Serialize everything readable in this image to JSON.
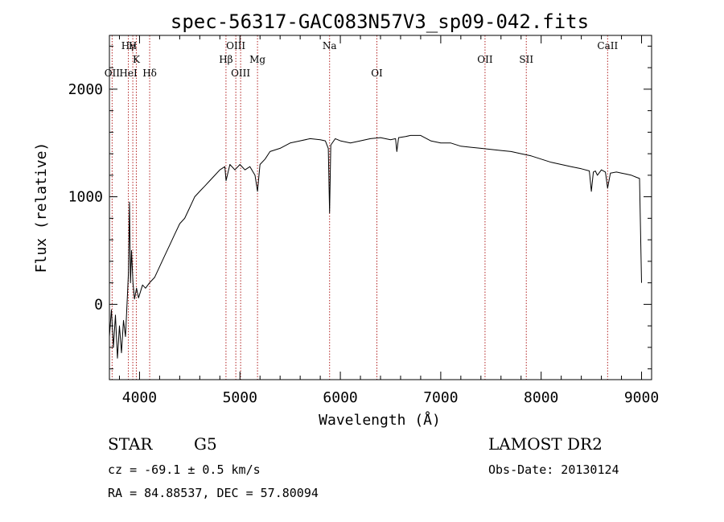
{
  "chart_data": {
    "type": "line",
    "title": "spec-56317-GAC083N57V3_sp09-042.fits",
    "xlabel": "Wavelength (Å)",
    "ylabel": "Flux (relative)",
    "xlim": [
      3700,
      9100
    ],
    "ylim": [
      -700,
      2500
    ],
    "xticks": [
      4000,
      5000,
      6000,
      7000,
      8000,
      9000
    ],
    "yticks": [
      0,
      1000,
      2000
    ],
    "grid": false,
    "line_color": "#000000",
    "marker_line_color": "#b22222",
    "spectrum": {
      "x": [
        3700,
        3720,
        3740,
        3760,
        3780,
        3800,
        3820,
        3840,
        3860,
        3880,
        3890,
        3900,
        3910,
        3920,
        3935,
        3950,
        3970,
        3990,
        4010,
        4030,
        4060,
        4100,
        4150,
        4200,
        4250,
        4300,
        4350,
        4400,
        4450,
        4500,
        4550,
        4600,
        4650,
        4700,
        4750,
        4800,
        4850,
        4862,
        4900,
        4950,
        5000,
        5050,
        5100,
        5150,
        5175,
        5200,
        5250,
        5300,
        5400,
        5500,
        5600,
        5700,
        5800,
        5850,
        5880,
        5893,
        5905,
        5950,
        6000,
        6100,
        6200,
        6300,
        6400,
        6500,
        6550,
        6563,
        6580,
        6650,
        6700,
        6800,
        6900,
        7000,
        7100,
        7200,
        7300,
        7400,
        7500,
        7600,
        7700,
        7800,
        7900,
        8000,
        8100,
        8200,
        8300,
        8400,
        8480,
        8500,
        8520,
        8540,
        8560,
        8600,
        8640,
        8662,
        8690,
        8750,
        8800,
        8850,
        8900,
        8950,
        8980,
        9000
      ],
      "y": [
        -300,
        -50,
        -400,
        -100,
        -500,
        -200,
        -450,
        -150,
        -300,
        100,
        300,
        950,
        200,
        500,
        200,
        50,
        150,
        60,
        120,
        180,
        150,
        200,
        250,
        350,
        450,
        550,
        650,
        750,
        800,
        900,
        1000,
        1050,
        1100,
        1150,
        1200,
        1250,
        1280,
        1150,
        1300,
        1250,
        1300,
        1250,
        1280,
        1200,
        1050,
        1300,
        1350,
        1420,
        1450,
        1500,
        1520,
        1540,
        1530,
        1520,
        1450,
        850,
        1480,
        1540,
        1520,
        1500,
        1520,
        1540,
        1550,
        1530,
        1540,
        1420,
        1550,
        1560,
        1570,
        1570,
        1520,
        1500,
        1500,
        1470,
        1460,
        1450,
        1440,
        1430,
        1420,
        1400,
        1380,
        1350,
        1320,
        1300,
        1280,
        1260,
        1240,
        1050,
        1230,
        1240,
        1200,
        1250,
        1230,
        1080,
        1220,
        1230,
        1220,
        1210,
        1200,
        1180,
        1170,
        200
      ]
    },
    "line_markers": [
      {
        "label": "Hγ",
        "x": 3889,
        "row": 1
      },
      {
        "label": "H",
        "x": 3933,
        "row": 1
      },
      {
        "label": "K",
        "x": 3968,
        "row": 2
      },
      {
        "label": "OII",
        "x": 3727,
        "row": 3
      },
      {
        "label": "HeI",
        "x": 3889,
        "row": 3
      },
      {
        "label": "Hδ",
        "x": 4101,
        "row": 3
      },
      {
        "label": "OIII",
        "x": 4959,
        "row": 1
      },
      {
        "label": "Hβ",
        "x": 4861,
        "row": 2
      },
      {
        "label": "Mg",
        "x": 5175,
        "row": 2
      },
      {
        "label": "OIII",
        "x": 5007,
        "row": 3
      },
      {
        "label": "Na",
        "x": 5893,
        "row": 1
      },
      {
        "label": "OI",
        "x": 6364,
        "row": 3
      },
      {
        "label": "OII",
        "x": 7441,
        "row": 2
      },
      {
        "label": "SII",
        "x": 7852,
        "row": 2
      },
      {
        "label": "CaII",
        "x": 8662,
        "row": 1
      }
    ]
  },
  "info": {
    "object_class": "STAR",
    "subclass": "G5",
    "velocity": "cz = -69.1 ± 0.5 km/s",
    "coordinates": "RA =  84.88537, DEC =  57.80094",
    "survey": "LAMOST DR2",
    "obs_date": "Obs-Date: 20130124"
  }
}
